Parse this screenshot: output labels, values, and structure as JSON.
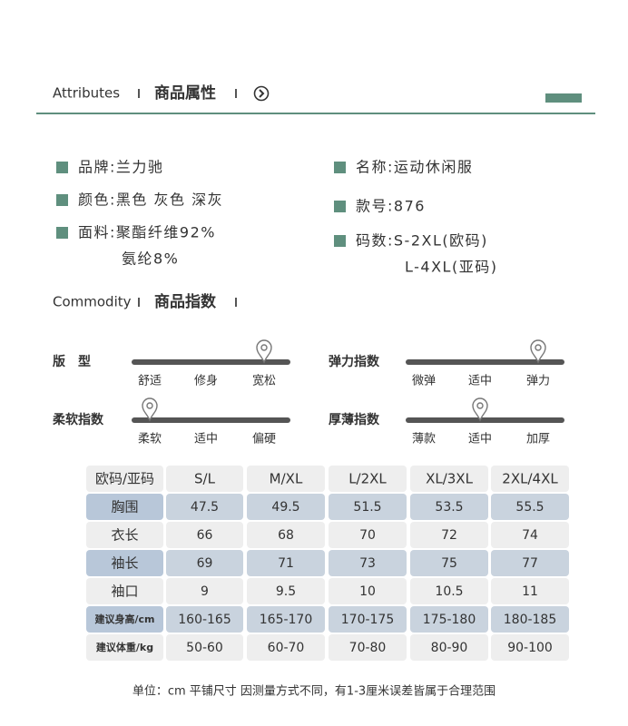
{
  "header": {
    "en": "Attributes",
    "cn": "商品属性"
  },
  "attributes": {
    "left": [
      [
        "品牌:兰力驰"
      ],
      [
        "颜色:黑色 灰色 深灰"
      ],
      [
        "面料:聚酯纤维92%",
        "氨纶8%"
      ]
    ],
    "right": [
      [
        "名称:运动休闲服"
      ],
      [
        "款号:876"
      ],
      [
        "码数:S-2XL(欧码)",
        "L-4XL(亚码)"
      ]
    ]
  },
  "index_header": {
    "en": "Commodity",
    "cn": "商品指数"
  },
  "indices": [
    {
      "name": "版　型",
      "labels": [
        "舒适",
        "修身",
        "宽松"
      ],
      "selected": 2
    },
    {
      "name": "弹力指数",
      "labels": [
        "微弹",
        "适中",
        "弹力"
      ],
      "selected": 2
    },
    {
      "name": "柔软指数",
      "labels": [
        "柔软",
        "适中",
        "偏硬"
      ],
      "selected": 0
    },
    {
      "name": "厚薄指数",
      "labels": [
        "薄款",
        "适中",
        "加厚"
      ],
      "selected": 1
    }
  ],
  "table": {
    "header": [
      "欧码/亚码",
      "S/L",
      "M/XL",
      "L/2XL",
      "XL/3XL",
      "2XL/4XL"
    ],
    "rows": [
      [
        "胸围",
        47.5,
        49.5,
        51.5,
        53.5,
        55.5
      ],
      [
        "衣长",
        66,
        68,
        70,
        72,
        74
      ],
      [
        "袖长",
        69,
        71,
        73,
        75,
        77
      ],
      [
        "袖口",
        9,
        9.5,
        10,
        10.5,
        11
      ],
      [
        "建议身高/cm",
        "160-165",
        "165-170",
        "170-175",
        "175-180",
        "180-185"
      ],
      [
        "建议体重/kg",
        "50-60",
        "60-70",
        "70-80",
        "80-90",
        "90-100"
      ]
    ]
  },
  "footer": "单位：cm  平铺尺寸  因测量方式不同，有1-3厘米误差皆属于合理范围"
}
